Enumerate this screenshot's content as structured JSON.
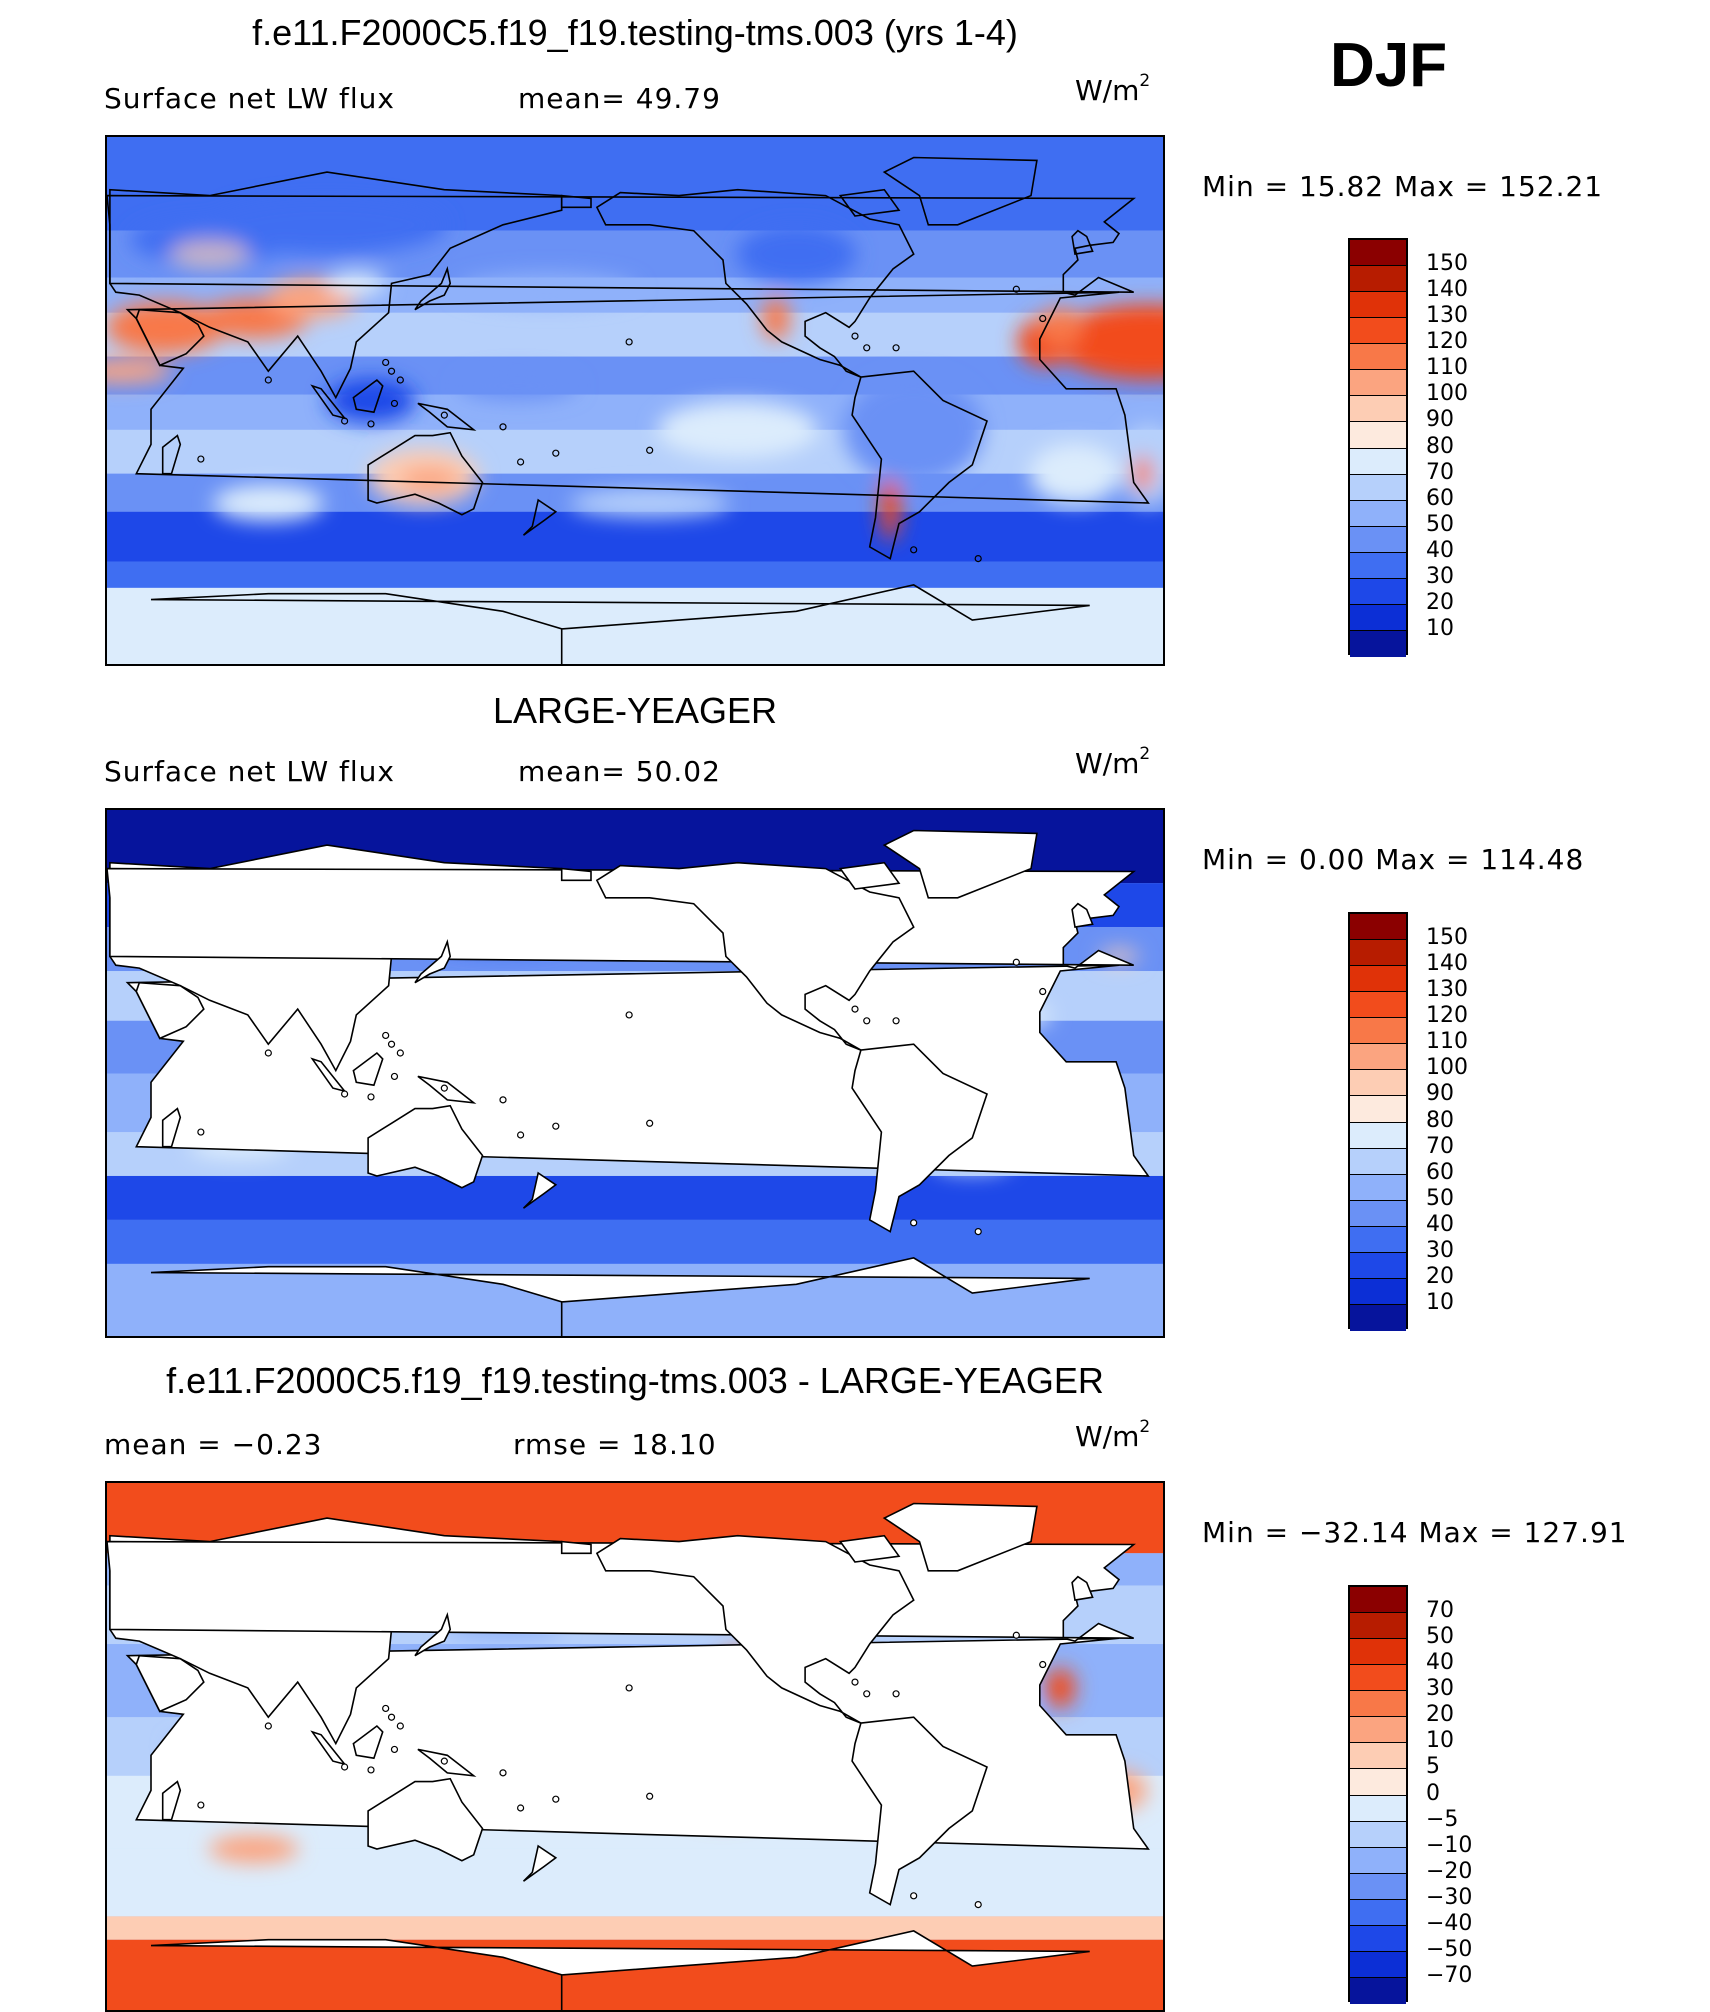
{
  "season": "DJF",
  "panels": [
    {
      "title": "f.e11.F2000C5.f19_f19.testing-tms.003 (yrs 1-4)",
      "left_label": "Surface net LW flux",
      "mid_label": "mean=  49.79",
      "units": "W/m",
      "units_sup": "2",
      "minmax": "Min =   15.82 Max = 152.21",
      "field_type": "model-full",
      "colorbar": {
        "labels": [
          "150",
          "140",
          "130",
          "120",
          "110",
          "100",
          "90",
          "80",
          "70",
          "60",
          "50",
          "40",
          "30",
          "20",
          "10"
        ],
        "colors": [
          "#8b0000",
          "#b71c00",
          "#e03208",
          "#f24c1c",
          "#f87848",
          "#fba480",
          "#fdcdb4",
          "#fdeade",
          "#dcecfc",
          "#b6d0fb",
          "#8fb1fa",
          "#6a91f5",
          "#3f6ef2",
          "#1e48e8",
          "#0c2fd6",
          "#06149c"
        ]
      }
    },
    {
      "title": "LARGE-YEAGER",
      "left_label": "Surface net LW flux",
      "mid_label": "mean=  50.02",
      "units": "W/m",
      "units_sup": "2",
      "minmax": "Min =    0.00 Max = 114.48",
      "field_type": "obs-ocean",
      "colorbar": {
        "labels": [
          "150",
          "140",
          "130",
          "120",
          "110",
          "100",
          "90",
          "80",
          "70",
          "60",
          "50",
          "40",
          "30",
          "20",
          "10"
        ],
        "colors": [
          "#8b0000",
          "#b71c00",
          "#e03208",
          "#f24c1c",
          "#f87848",
          "#fba480",
          "#fdcdb4",
          "#fdeade",
          "#dcecfc",
          "#b6d0fb",
          "#8fb1fa",
          "#6a91f5",
          "#3f6ef2",
          "#1e48e8",
          "#0c2fd6",
          "#06149c"
        ]
      }
    },
    {
      "title": "f.e11.F2000C5.f19_f19.testing-tms.003 - LARGE-YEAGER",
      "left_label": "mean =   −0.23",
      "mid_label": "rmse =   18.10",
      "units": "W/m",
      "units_sup": "2",
      "minmax": "Min = −32.14 Max = 127.91",
      "field_type": "difference",
      "colorbar": {
        "labels": [
          "70",
          "50",
          "40",
          "30",
          "20",
          "10",
          "5",
          "0",
          "−5",
          "−10",
          "−20",
          "−30",
          "−40",
          "−50",
          "−70"
        ],
        "colors": [
          "#8b0000",
          "#b71c00",
          "#e03208",
          "#f24c1c",
          "#f87848",
          "#fba480",
          "#fdcdb4",
          "#fdeade",
          "#dcecfc",
          "#b6d0fb",
          "#8fb1fa",
          "#6a91f5",
          "#3f6ef2",
          "#1e48e8",
          "#0c2fd6",
          "#06149c"
        ]
      }
    }
  ]
}
